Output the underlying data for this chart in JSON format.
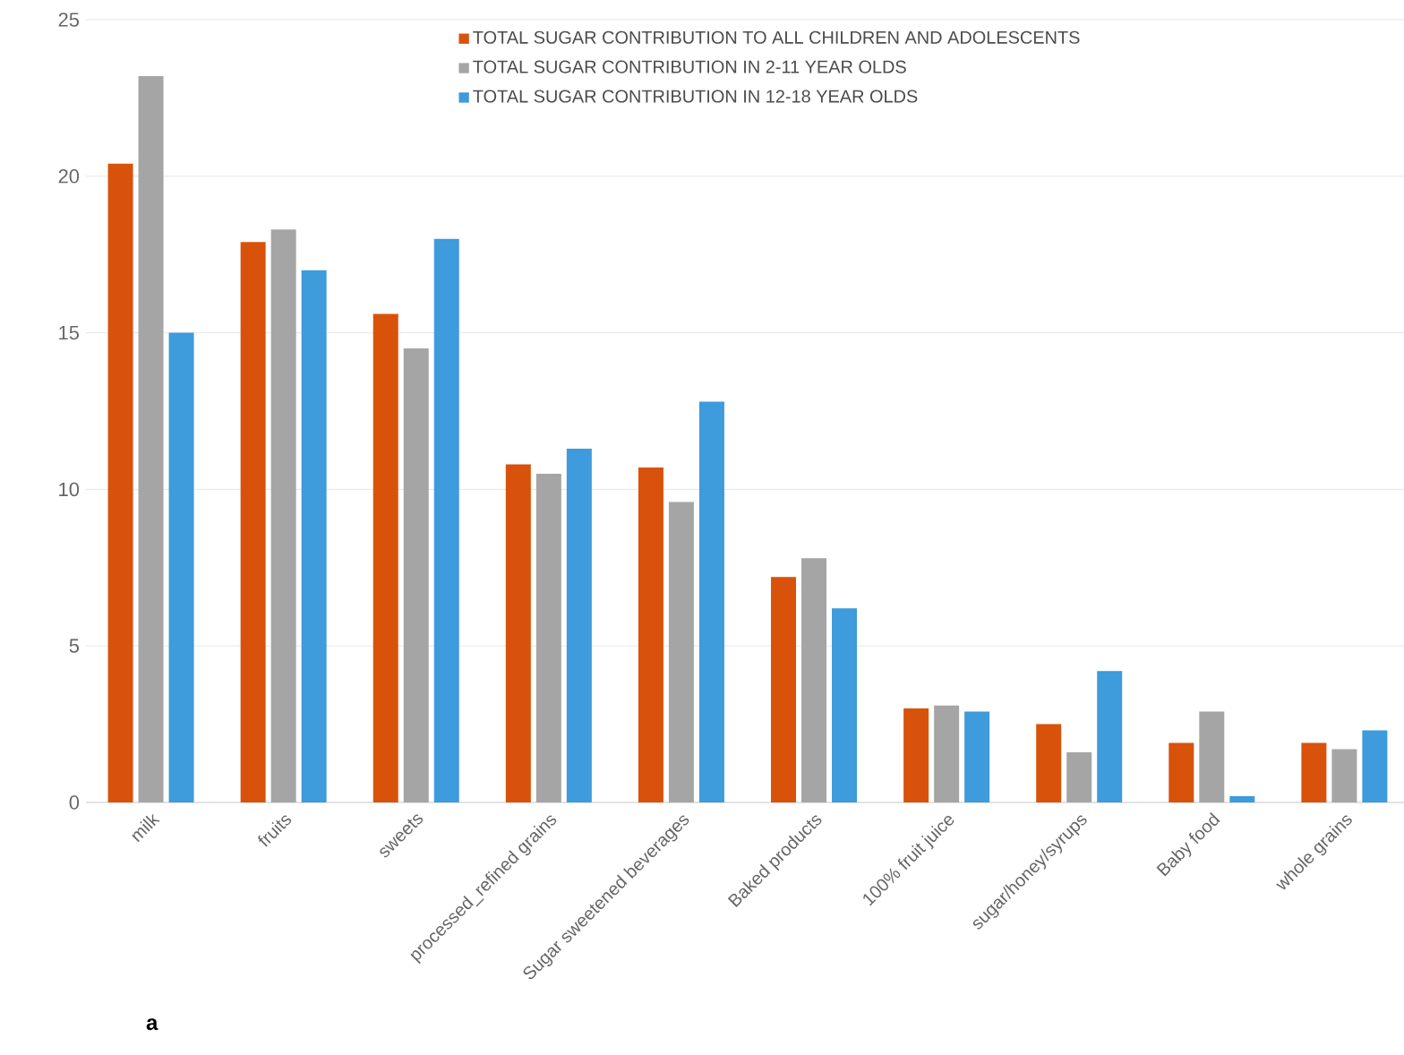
{
  "chart_data": {
    "type": "bar",
    "categories": [
      "milk",
      "fruits",
      "sweets",
      "processed_refined grains",
      "Sugar sweetened beverages",
      "Baked products",
      "100% fruit juice",
      "sugar/honey/syrups",
      "Baby food",
      "whole grains"
    ],
    "series": [
      {
        "name": "TOTAL SUGAR CONTRIBUTION TO ALL CHILDREN AND ADOLESCENTS",
        "color": "#d9520b",
        "values": [
          20.4,
          17.9,
          15.6,
          10.8,
          10.7,
          7.2,
          3.0,
          2.5,
          1.9,
          1.9
        ]
      },
      {
        "name": "TOTAL SUGAR CONTRIBUTION IN 2-11 YEAR OLDS",
        "color": "#a5a5a5",
        "values": [
          23.2,
          18.3,
          14.5,
          10.5,
          9.6,
          7.8,
          3.1,
          1.6,
          2.9,
          1.7
        ]
      },
      {
        "name": "TOTAL SUGAR CONTRIBUTION IN 12-18 YEAR OLDS",
        "color": "#3e9bdc",
        "values": [
          15.0,
          17.0,
          18.0,
          11.3,
          12.8,
          6.2,
          2.9,
          4.2,
          0.2,
          2.3
        ]
      }
    ],
    "ylim": [
      0,
      25
    ],
    "yticks": [
      0,
      5,
      10,
      15,
      20,
      25
    ],
    "grid": "y",
    "legend": "top",
    "annotations": [
      "a"
    ]
  }
}
